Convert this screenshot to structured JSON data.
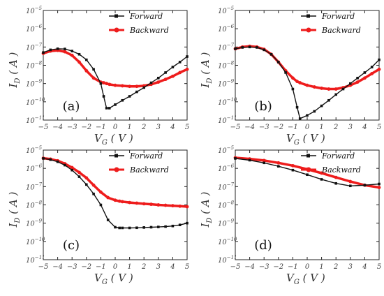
{
  "colors": {
    "forward": "#111111",
    "backward": "#ee1c1c"
  },
  "axis": {
    "x_ticks": [
      "-5",
      "-4",
      "-3",
      "-2",
      "-1",
      "0",
      "1",
      "2",
      "3",
      "4",
      "5"
    ],
    "y_tick_base": "10",
    "y_tick_exps": [
      "-11",
      "-10",
      "-9",
      "-8",
      "-7",
      "-6",
      "-5"
    ],
    "xlabel_main": "V",
    "xlabel_sub": "G",
    "xlabel_unit": " ( V )",
    "ylabel_main": "I",
    "ylabel_sub": "D",
    "ylabel_unit": " ( A )"
  },
  "legend": {
    "forward": "Forward",
    "backward": "Backward"
  },
  "chart_data": [
    {
      "type": "line",
      "panel_label": "(a)",
      "y_scale": "log",
      "xlim": [
        -5,
        5
      ],
      "ylim": [
        1e-11,
        1e-05
      ],
      "legend_position": "top-right",
      "x": [
        -5,
        -4.5,
        -4,
        -3.5,
        -3,
        -2.5,
        -2,
        -1.5,
        -1,
        -0.8,
        -0.6,
        -0.4,
        0,
        0.5,
        1,
        1.5,
        2,
        2.5,
        3,
        3.5,
        4,
        4.5,
        5
      ],
      "series": [
        {
          "name": "Forward",
          "values": [
            5e-08,
            7e-08,
            8e-08,
            7.8e-08,
            6e-08,
            4e-08,
            2e-08,
            6e-09,
            1e-09,
            2e-10,
            4.5e-11,
            4.5e-11,
            7e-11,
            1.2e-10,
            2e-10,
            3.5e-10,
            6e-10,
            1.1e-09,
            2e-09,
            4e-09,
            8e-09,
            1.5e-08,
            3e-08
          ]
        },
        {
          "name": "Backward",
          "values": [
            4.5e-08,
            6e-08,
            6.5e-08,
            5.5e-08,
            3.5e-08,
            1.5e-08,
            5e-09,
            2e-09,
            1.2e-09,
            1.1e-09,
            1e-09,
            9e-10,
            8e-10,
            7.5e-10,
            7e-10,
            7e-10,
            7.5e-10,
            9e-10,
            1.2e-09,
            1.7e-09,
            2.5e-09,
            4e-09,
            6e-09
          ]
        }
      ]
    },
    {
      "type": "line",
      "panel_label": "(b)",
      "y_scale": "log",
      "xlim": [
        -5,
        5
      ],
      "ylim": [
        1e-11,
        1e-05
      ],
      "legend_position": "top-right",
      "x": [
        -5,
        -4.5,
        -4,
        -3.5,
        -3,
        -2.5,
        -2,
        -1.5,
        -1,
        -0.7,
        -0.5,
        0,
        0.5,
        1,
        1.5,
        2,
        2.5,
        3,
        3.5,
        4,
        4.5,
        5
      ],
      "series": [
        {
          "name": "Forward",
          "values": [
            8e-08,
            9.5e-08,
            1e-07,
            9.5e-08,
            7e-08,
            4e-08,
            1.5e-08,
            4e-09,
            5e-10,
            5e-11,
            1.2e-11,
            1.8e-11,
            3e-11,
            6e-11,
            1.2e-10,
            2.5e-10,
            5e-10,
            1e-09,
            2e-09,
            4e-09,
            8e-09,
            2e-08
          ]
        },
        {
          "name": "Backward",
          "values": [
            8e-08,
            1e-07,
            1.1e-07,
            1e-07,
            7.5e-08,
            4e-08,
            1.5e-08,
            5e-09,
            2e-09,
            1.3e-09,
            1.1e-09,
            8e-10,
            6.5e-10,
            5.5e-10,
            5e-10,
            5e-10,
            6e-10,
            8e-10,
            1.2e-09,
            2e-09,
            3.5e-09,
            6e-09
          ]
        }
      ]
    },
    {
      "type": "line",
      "panel_label": "(c)",
      "y_scale": "log",
      "xlim": [
        -5,
        5
      ],
      "ylim": [
        1e-11,
        1e-05
      ],
      "legend_position": "top-right",
      "x": [
        -5,
        -4.5,
        -4,
        -3.5,
        -3,
        -2.5,
        -2,
        -1.5,
        -1,
        -0.5,
        0,
        0.3,
        0.5,
        1,
        1.5,
        2,
        2.5,
        3,
        3.5,
        4,
        4.5,
        5
      ],
      "series": [
        {
          "name": "Forward",
          "values": [
            3.5e-06,
            3e-06,
            2.3e-06,
            1.5e-06,
            8e-07,
            3.5e-07,
            1.3e-07,
            4e-08,
            1e-08,
            1.5e-09,
            6e-10,
            5.5e-10,
            5.5e-10,
            5.5e-10,
            5.6e-10,
            5.8e-10,
            6e-10,
            6.2e-10,
            6.5e-10,
            7e-10,
            8e-10,
            1e-09
          ]
        },
        {
          "name": "Backward",
          "values": [
            3.6e-06,
            3.2e-06,
            2.6e-06,
            1.8e-06,
            1.1e-06,
            6e-07,
            3e-07,
            1.2e-07,
            5e-08,
            2.5e-08,
            1.8e-08,
            1.6e-08,
            1.5e-08,
            1.35e-08,
            1.25e-08,
            1.15e-08,
            1.08e-08,
            1e-08,
            9.5e-09,
            9e-09,
            8.5e-09,
            8e-09
          ]
        }
      ]
    },
    {
      "type": "line",
      "panel_label": "(d)",
      "y_scale": "log",
      "xlim": [
        -5,
        5
      ],
      "ylim": [
        1e-11,
        1e-05
      ],
      "legend_position": "top-right",
      "x": [
        -5,
        -4,
        -3,
        -2,
        -1,
        0,
        1,
        2,
        3,
        4,
        5
      ],
      "series": [
        {
          "name": "Forward",
          "values": [
            3.5e-06,
            2.8e-06,
            2e-06,
            1.3e-06,
            8e-07,
            4.5e-07,
            2.5e-07,
            1.5e-07,
            1.1e-07,
            1.2e-07,
            1.4e-07
          ]
        },
        {
          "name": "Backward",
          "values": [
            3.8e-06,
            3.3e-06,
            2.7e-06,
            2e-06,
            1.4e-06,
            9e-07,
            5.5e-07,
            3.2e-07,
            1.9e-07,
            1.2e-07,
            9e-08
          ]
        }
      ]
    }
  ]
}
